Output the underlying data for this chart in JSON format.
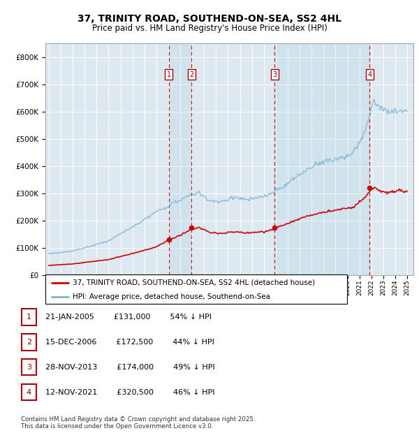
{
  "title": "37, TRINITY ROAD, SOUTHEND-ON-SEA, SS2 4HL",
  "subtitle": "Price paid vs. HM Land Registry's House Price Index (HPI)",
  "hpi_color": "#7ab3d4",
  "price_color": "#cc0000",
  "plot_bg": "#dde8f0",
  "ylim": [
    0,
    850000
  ],
  "yticks": [
    0,
    100000,
    200000,
    300000,
    400000,
    500000,
    600000,
    700000,
    800000
  ],
  "ytick_labels": [
    "£0",
    "£100K",
    "£200K",
    "£300K",
    "£400K",
    "£500K",
    "£600K",
    "£700K",
    "£800K"
  ],
  "purchases": [
    {
      "num": 1,
      "date": "21-JAN-2005",
      "year": 2005.055,
      "price": 131000,
      "pct": "54%",
      "dir": "↓"
    },
    {
      "num": 2,
      "date": "15-DEC-2006",
      "year": 2006.958,
      "price": 172500,
      "pct": "44%",
      "dir": "↓"
    },
    {
      "num": 3,
      "date": "28-NOV-2013",
      "year": 2013.908,
      "price": 174000,
      "pct": "49%",
      "dir": "↓"
    },
    {
      "num": 4,
      "date": "12-NOV-2021",
      "year": 2021.868,
      "price": 320500,
      "pct": "46%",
      "dir": "↓"
    }
  ],
  "legend_line1": "37, TRINITY ROAD, SOUTHEND-ON-SEA, SS2 4HL (detached house)",
  "legend_line2": "HPI: Average price, detached house, Southend-on-Sea",
  "footer": "Contains HM Land Registry data © Crown copyright and database right 2025.\nThis data is licensed under the Open Government Licence v3.0."
}
